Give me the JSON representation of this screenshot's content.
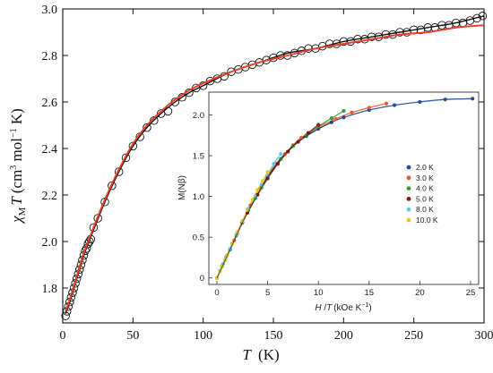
{
  "chart_data": [
    {
      "type": "scatter",
      "xlabel_italic": "T",
      "xlabel_unit": "(K)",
      "ylabel_chi": "χ",
      "ylabel_sub": "M",
      "ylabel_T": "T",
      "ylabel_unit_open": "(cm",
      "ylabel_unit_exp1": "3",
      "ylabel_unit_mid": " mol",
      "ylabel_unit_exp2": "−1",
      "ylabel_unit_close": " K)",
      "xlim": [
        0,
        300
      ],
      "ylim": [
        1.65,
        3.0
      ],
      "xticks": [
        0,
        50,
        100,
        150,
        200,
        250,
        300
      ],
      "yticks": [
        1.8,
        2.0,
        2.2,
        2.4,
        2.6,
        2.8,
        3.0
      ],
      "ytick_labels": [
        "1.8",
        "2.0",
        "2.2",
        "2.4",
        "2.6",
        "2.8",
        "3.0"
      ],
      "series": [
        {
          "marker": "open-circle",
          "color": "#111111",
          "x": [
            2,
            3,
            4,
            5,
            6,
            7,
            8,
            9,
            10,
            11,
            12,
            13,
            14,
            15,
            16,
            17,
            18,
            19,
            20,
            22,
            25,
            30,
            35,
            40,
            45,
            50,
            55,
            60,
            65,
            70,
            75,
            80,
            85,
            90,
            95,
            100,
            105,
            110,
            115,
            120,
            125,
            130,
            135,
            140,
            145,
            150,
            155,
            160,
            165,
            170,
            175,
            180,
            185,
            190,
            195,
            200,
            205,
            210,
            215,
            220,
            225,
            230,
            235,
            240,
            245,
            250,
            255,
            260,
            265,
            270,
            275,
            280,
            285,
            290,
            295,
            299
          ],
          "y": [
            1.68,
            1.7,
            1.72,
            1.74,
            1.76,
            1.78,
            1.8,
            1.82,
            1.84,
            1.86,
            1.88,
            1.9,
            1.92,
            1.94,
            1.96,
            1.97,
            1.99,
            2.0,
            2.01,
            2.06,
            2.1,
            2.17,
            2.24,
            2.3,
            2.36,
            2.41,
            2.45,
            2.49,
            2.52,
            2.55,
            2.56,
            2.6,
            2.62,
            2.64,
            2.66,
            2.67,
            2.69,
            2.7,
            2.71,
            2.73,
            2.74,
            2.75,
            2.76,
            2.77,
            2.78,
            2.79,
            2.8,
            2.8,
            2.81,
            2.82,
            2.83,
            2.83,
            2.84,
            2.85,
            2.85,
            2.86,
            2.86,
            2.87,
            2.87,
            2.88,
            2.88,
            2.89,
            2.89,
            2.9,
            2.9,
            2.91,
            2.91,
            2.92,
            2.92,
            2.93,
            2.93,
            2.94,
            2.94,
            2.95,
            2.96,
            2.97
          ]
        },
        {
          "marker": "line",
          "color": "#111111",
          "x": [
            2,
            5,
            10,
            15,
            20,
            30,
            40,
            50,
            60,
            70,
            80,
            90,
            100,
            120,
            140,
            160,
            180,
            200,
            220,
            240,
            260,
            280,
            300
          ],
          "y": [
            1.69,
            1.74,
            1.84,
            1.94,
            2.02,
            2.17,
            2.3,
            2.41,
            2.49,
            2.55,
            2.6,
            2.64,
            2.67,
            2.73,
            2.77,
            2.81,
            2.83,
            2.86,
            2.88,
            2.9,
            2.92,
            2.94,
            2.97
          ]
        },
        {
          "marker": "line",
          "color": "#e8412a",
          "x": [
            2,
            5,
            10,
            15,
            20,
            30,
            40,
            50,
            60,
            70,
            80,
            90,
            100,
            120,
            140,
            160,
            180,
            200,
            220,
            240,
            260,
            280,
            300
          ],
          "y": [
            1.7,
            1.75,
            1.85,
            1.95,
            2.03,
            2.18,
            2.31,
            2.42,
            2.5,
            2.56,
            2.61,
            2.65,
            2.68,
            2.73,
            2.77,
            2.8,
            2.83,
            2.85,
            2.87,
            2.89,
            2.9,
            2.92,
            2.93
          ]
        }
      ]
    },
    {
      "type": "scatter",
      "ylabel": "M(Nβ)",
      "xlabel_H": "H",
      "xlabel_slash": " /",
      "xlabel_T": "T",
      "xlabel_unit": "(kOe K",
      "xlabel_exp": "−1",
      "xlabel_close": ")",
      "xlim": [
        -0.8,
        25.8
      ],
      "ylim": [
        -0.08,
        2.28
      ],
      "xticks": [
        0,
        5,
        10,
        15,
        20,
        25
      ],
      "yticks": [
        0,
        0.5,
        1.0,
        1.5,
        2.0
      ],
      "ytick_labels": [
        "0",
        "0.5",
        "1.0",
        "1.5",
        "2.0"
      ],
      "series": [
        {
          "name": "2.0 K",
          "color": "#1f4e9a",
          "x": [
            0,
            1.3,
            2.5,
            3.8,
            5.0,
            6.3,
            7.5,
            8.8,
            10.0,
            11.3,
            12.5,
            15.0,
            17.5,
            20.0,
            22.5,
            25.2
          ],
          "y": [
            0,
            0.35,
            0.68,
            0.98,
            1.24,
            1.46,
            1.62,
            1.74,
            1.83,
            1.91,
            1.97,
            2.06,
            2.12,
            2.16,
            2.19,
            2.2
          ]
        },
        {
          "name": "3.0 K",
          "color": "#ee5a2a",
          "x": [
            0,
            0.8,
            1.7,
            2.5,
            3.3,
            4.2,
            5.0,
            5.8,
            6.7,
            7.5,
            8.3,
            10.0,
            11.7,
            13.3,
            15.0,
            16.7
          ],
          "y": [
            0,
            0.22,
            0.46,
            0.68,
            0.89,
            1.08,
            1.25,
            1.4,
            1.52,
            1.63,
            1.72,
            1.85,
            1.95,
            2.03,
            2.09,
            2.14
          ]
        },
        {
          "name": "4.0 K",
          "color": "#3f9a2f",
          "x": [
            0,
            0.6,
            1.3,
            1.9,
            2.5,
            3.1,
            3.8,
            4.4,
            5.0,
            6.3,
            7.5,
            8.8,
            10.0,
            11.3,
            12.5
          ],
          "y": [
            0,
            0.17,
            0.35,
            0.52,
            0.68,
            0.83,
            0.98,
            1.11,
            1.24,
            1.46,
            1.62,
            1.75,
            1.86,
            1.96,
            2.05
          ]
        },
        {
          "name": "5.0 K",
          "color": "#8a1a1a",
          "x": [
            0,
            0.5,
            1.0,
            1.5,
            2.0,
            2.5,
            3.0,
            4.0,
            5.0,
            6.0,
            7.0,
            8.0,
            9.0,
            10.0
          ],
          "y": [
            0,
            0.14,
            0.28,
            0.42,
            0.55,
            0.68,
            0.8,
            1.02,
            1.22,
            1.4,
            1.55,
            1.67,
            1.78,
            1.88
          ]
        },
        {
          "name": "8.0 K",
          "color": "#5cc8ea",
          "x": [
            0,
            0.3,
            0.6,
            0.9,
            1.3,
            1.9,
            2.5,
            3.1,
            3.8,
            4.4,
            5.0,
            5.6,
            6.3
          ],
          "y": [
            0,
            0.09,
            0.17,
            0.26,
            0.36,
            0.53,
            0.69,
            0.85,
            1.0,
            1.14,
            1.27,
            1.4,
            1.52
          ]
        },
        {
          "name": "10.0 K",
          "color": "#f2c419",
          "x": [
            0,
            0.3,
            0.5,
            0.8,
            1.0,
            1.5,
            2.0,
            2.5,
            3.0,
            3.5,
            4.0,
            4.5,
            5.0
          ],
          "y": [
            0,
            0.08,
            0.14,
            0.22,
            0.28,
            0.42,
            0.56,
            0.7,
            0.83,
            0.96,
            1.08,
            1.19,
            1.3
          ]
        }
      ],
      "fit_color": "#1a1a1a",
      "legend_position": "right"
    }
  ]
}
